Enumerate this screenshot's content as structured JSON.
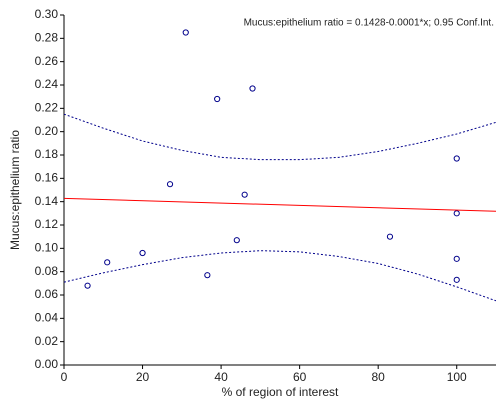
{
  "chart_data": {
    "type": "scatter",
    "annotation": "Mucus:epithelium ratio = 0.1428-0.0001*x; 0.95 Conf.Int.",
    "xlabel": "% of region of interest",
    "ylabel": "Mucus:epithelium ratio",
    "xlim": [
      0,
      110
    ],
    "ylim": [
      0,
      0.3
    ],
    "xticks": [
      0,
      20,
      40,
      60,
      80,
      100
    ],
    "yticks": [
      {
        "value": 0,
        "label": "0.00"
      },
      {
        "value": 0.02,
        "label": "0.02"
      },
      {
        "value": 0.04,
        "label": "0.04"
      },
      {
        "value": 0.06,
        "label": "0.06"
      },
      {
        "value": 0.08,
        "label": "0.08"
      },
      {
        "value": 0.1,
        "label": "0.10"
      },
      {
        "value": 0.12,
        "label": "0.12"
      },
      {
        "value": 0.14,
        "label": "0.14"
      },
      {
        "value": 0.16,
        "label": "0.16"
      },
      {
        "value": 0.18,
        "label": "0.18"
      },
      {
        "value": 0.2,
        "label": "0.20"
      },
      {
        "value": 0.22,
        "label": "0.22"
      },
      {
        "value": 0.24,
        "label": "0.24"
      },
      {
        "value": 0.26,
        "label": "0.26"
      },
      {
        "value": 0.28,
        "label": "0.28"
      },
      {
        "value": 0.3,
        "label": "0.30"
      }
    ],
    "series": [
      {
        "type": "scatter",
        "color": "#00008b",
        "x": [
          6,
          11,
          20,
          27,
          31,
          36.5,
          39,
          48,
          44,
          46,
          83,
          100,
          100,
          100,
          100
        ],
        "values": [
          0.068,
          0.088,
          0.096,
          0.155,
          0.285,
          0.077,
          0.228,
          0.237,
          0.107,
          0.146,
          0.11,
          0.177,
          0.13,
          0.091,
          0.073
        ]
      },
      {
        "type": "line",
        "color": "#ff0000",
        "dashed": false,
        "x": [
          0,
          110
        ],
        "values": [
          0.1428,
          0.1318
        ]
      },
      {
        "type": "line",
        "color": "#00008b",
        "dashed": true,
        "x": [
          0,
          10,
          20,
          30,
          40,
          50,
          60,
          70,
          80,
          90,
          100,
          110
        ],
        "values": [
          0.215,
          0.203,
          0.192,
          0.184,
          0.178,
          0.176,
          0.176,
          0.178,
          0.183,
          0.19,
          0.198,
          0.208
        ]
      },
      {
        "type": "line",
        "color": "#00008b",
        "dashed": true,
        "x": [
          0,
          10,
          20,
          30,
          40,
          50,
          60,
          70,
          80,
          90,
          100,
          110
        ],
        "values": [
          0.071,
          0.079,
          0.086,
          0.092,
          0.096,
          0.098,
          0.097,
          0.093,
          0.087,
          0.078,
          0.067,
          0.055
        ]
      }
    ]
  }
}
